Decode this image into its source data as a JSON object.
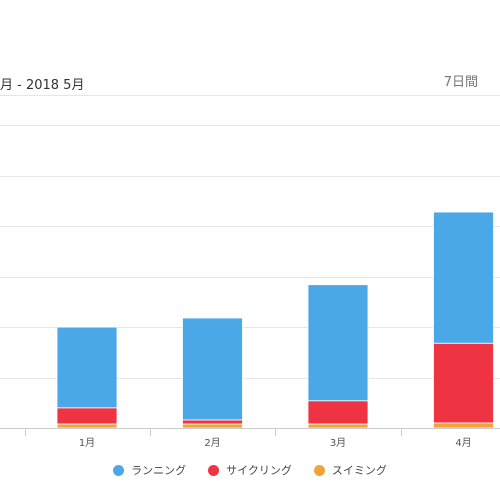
{
  "header": {
    "range": "月 - 2018 5月",
    "period": "7日間"
  },
  "colors": {
    "running": "#4aa8e6",
    "cycling": "#ee3342",
    "swimming": "#f0a33a",
    "grid": "#e6e6e6",
    "axis": "#cccccc",
    "tick_text": "#555555"
  },
  "chart_data": {
    "type": "bar",
    "stacked": true,
    "categories": [
      "1月",
      "2月",
      "3月",
      "4月"
    ],
    "series": [
      {
        "name": "スイミング",
        "key": "swimming",
        "values": [
          4,
          4,
          4,
          5
        ]
      },
      {
        "name": "サイクリング",
        "key": "cycling",
        "values": [
          16,
          4,
          23,
          79
        ]
      },
      {
        "name": "ランニング",
        "key": "running",
        "values": [
          80,
          101,
          115,
          130
        ]
      }
    ],
    "ylim": [
      0,
      330
    ],
    "y_gridlines": [
      50,
      100,
      150,
      200,
      250,
      300,
      330
    ],
    "grid": true,
    "legend_position": "bottom",
    "title": "",
    "xlabel": "",
    "ylabel": ""
  },
  "legend": [
    {
      "label": "ランニング",
      "color_key": "running"
    },
    {
      "label": "サイクリング",
      "color_key": "cycling"
    },
    {
      "label": "スイミング",
      "color_key": "swimming"
    }
  ]
}
